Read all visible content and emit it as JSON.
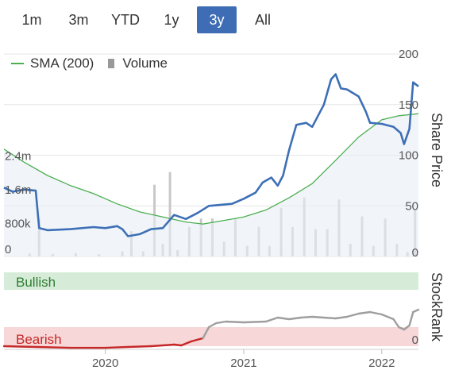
{
  "range_selector": {
    "buttons": [
      "1m",
      "3m",
      "YTD",
      "1y",
      "3y",
      "All"
    ],
    "active": "3y"
  },
  "legend": {
    "sma_label": "SMA (200)",
    "volume_label": "Volume"
  },
  "colors": {
    "price": "#3d6fb6",
    "sma": "#4caf50",
    "volume": "#c8c8c8",
    "bullish_band": "#d6ecd8",
    "bearish_band": "#f7d7d7",
    "bullish_text": "#2e7d32",
    "bearish_text": "#c62828",
    "rank_bull": "#9e9e9e",
    "rank_bear": "#c62828",
    "active_button": "#3f6db5"
  },
  "chart_data": {
    "type": "line",
    "x_tick_labels": [
      "2020",
      "2021",
      "2022"
    ],
    "price_axis": {
      "title": "Share Price",
      "ticks": [
        0,
        50,
        100,
        150,
        200
      ],
      "ylim": [
        0,
        200
      ]
    },
    "volume_axis": {
      "tick_labels": [
        "0",
        "800k",
        "1.6m",
        "2.4m"
      ],
      "ticks": [
        0,
        800000,
        1600000,
        2400000
      ],
      "ylim": [
        0,
        4800000
      ]
    },
    "stockrank_axis": {
      "title": "StockRank",
      "ticks": [
        0
      ],
      "ylim": [
        0,
        100
      ],
      "bullish_label": "Bullish",
      "bearish_label": "Bearish"
    },
    "x_range": [
      "2019-04-08",
      "2022-04-08"
    ],
    "series": [
      {
        "name": "SMA (200)",
        "points": [
          [
            "2019-04-08",
            106
          ],
          [
            "2019-06-01",
            93
          ],
          [
            "2019-08-01",
            80
          ],
          [
            "2019-10-01",
            70
          ],
          [
            "2019-12-01",
            62
          ],
          [
            "2020-02-01",
            52
          ],
          [
            "2020-04-01",
            44
          ],
          [
            "2020-06-01",
            39
          ],
          [
            "2020-08-01",
            34
          ],
          [
            "2020-09-15",
            32
          ],
          [
            "2020-11-01",
            35
          ],
          [
            "2021-01-01",
            39
          ],
          [
            "2021-03-01",
            46
          ],
          [
            "2021-05-01",
            58
          ],
          [
            "2021-07-01",
            72
          ],
          [
            "2021-09-01",
            95
          ],
          [
            "2021-11-01",
            118
          ],
          [
            "2022-01-01",
            135
          ],
          [
            "2022-02-15",
            139
          ],
          [
            "2022-04-08",
            141
          ]
        ]
      },
      {
        "name": "Share Price",
        "points": [
          [
            "2019-04-08",
            68
          ],
          [
            "2019-05-01",
            64
          ],
          [
            "2019-06-01",
            66
          ],
          [
            "2019-07-01",
            65
          ],
          [
            "2019-07-10",
            28
          ],
          [
            "2019-08-01",
            26
          ],
          [
            "2019-10-01",
            27
          ],
          [
            "2019-12-01",
            29
          ],
          [
            "2020-01-01",
            28
          ],
          [
            "2020-02-01",
            30
          ],
          [
            "2020-02-15",
            27
          ],
          [
            "2020-03-01",
            20
          ],
          [
            "2020-04-01",
            22
          ],
          [
            "2020-05-01",
            27
          ],
          [
            "2020-06-01",
            28
          ],
          [
            "2020-07-01",
            41
          ],
          [
            "2020-08-01",
            37
          ],
          [
            "2020-09-01",
            43
          ],
          [
            "2020-10-01",
            50
          ],
          [
            "2020-12-01",
            52
          ],
          [
            "2021-01-01",
            57
          ],
          [
            "2021-02-01",
            63
          ],
          [
            "2021-02-20",
            73
          ],
          [
            "2021-03-15",
            78
          ],
          [
            "2021-04-01",
            70
          ],
          [
            "2021-04-15",
            80
          ],
          [
            "2021-05-01",
            105
          ],
          [
            "2021-05-20",
            130
          ],
          [
            "2021-06-15",
            132
          ],
          [
            "2021-07-01",
            128
          ],
          [
            "2021-08-01",
            150
          ],
          [
            "2021-08-20",
            175
          ],
          [
            "2021-09-01",
            180
          ],
          [
            "2021-09-15",
            166
          ],
          [
            "2021-10-01",
            165
          ],
          [
            "2021-11-01",
            158
          ],
          [
            "2021-11-20",
            143
          ],
          [
            "2021-12-01",
            132
          ],
          [
            "2022-01-01",
            131
          ],
          [
            "2022-02-01",
            128
          ],
          [
            "2022-02-20",
            122
          ],
          [
            "2022-03-01",
            111
          ],
          [
            "2022-03-15",
            126
          ],
          [
            "2022-03-25",
            172
          ],
          [
            "2022-04-08",
            168
          ]
        ]
      },
      {
        "name": "Volume",
        "bars": [
          [
            "2019-06-15",
            70000
          ],
          [
            "2019-07-10",
            900000
          ],
          [
            "2019-08-15",
            60000
          ],
          [
            "2019-10-15",
            80000
          ],
          [
            "2019-12-15",
            50000
          ],
          [
            "2020-02-15",
            120000
          ],
          [
            "2020-03-10",
            600000
          ],
          [
            "2020-04-10",
            120000
          ],
          [
            "2020-05-10",
            1700000
          ],
          [
            "2020-06-01",
            300000
          ],
          [
            "2020-06-20",
            2000000
          ],
          [
            "2020-07-10",
            150000
          ],
          [
            "2020-08-10",
            700000
          ],
          [
            "2020-09-10",
            900000
          ],
          [
            "2020-10-10",
            900000
          ],
          [
            "2020-11-10",
            350000
          ],
          [
            "2020-12-10",
            900000
          ],
          [
            "2021-01-10",
            250000
          ],
          [
            "2021-02-10",
            700000
          ],
          [
            "2021-03-10",
            250000
          ],
          [
            "2021-04-10",
            1150000
          ],
          [
            "2021-05-10",
            700000
          ],
          [
            "2021-06-10",
            1400000
          ],
          [
            "2021-07-10",
            650000
          ],
          [
            "2021-08-10",
            650000
          ],
          [
            "2021-09-10",
            1350000
          ],
          [
            "2021-10-10",
            300000
          ],
          [
            "2021-11-10",
            950000
          ],
          [
            "2021-12-10",
            250000
          ],
          [
            "2022-01-10",
            900000
          ],
          [
            "2022-02-10",
            300000
          ],
          [
            "2022-03-10",
            100000
          ],
          [
            "2022-03-30",
            1100000
          ]
        ]
      },
      {
        "name": "StockRank",
        "points": [
          [
            "2019-04-08",
            4
          ],
          [
            "2019-07-01",
            3
          ],
          [
            "2019-10-01",
            2
          ],
          [
            "2020-01-01",
            2
          ],
          [
            "2020-03-01",
            3
          ],
          [
            "2020-05-01",
            4
          ],
          [
            "2020-07-01",
            6
          ],
          [
            "2020-07-20",
            5
          ],
          [
            "2020-08-15",
            10
          ],
          [
            "2020-09-15",
            14
          ],
          [
            "2020-10-01",
            28
          ],
          [
            "2020-10-20",
            33
          ],
          [
            "2020-11-15",
            35
          ],
          [
            "2021-01-01",
            34
          ],
          [
            "2021-03-01",
            35
          ],
          [
            "2021-04-01",
            40
          ],
          [
            "2021-05-01",
            38
          ],
          [
            "2021-06-01",
            40
          ],
          [
            "2021-07-01",
            41
          ],
          [
            "2021-09-01",
            39
          ],
          [
            "2021-10-01",
            41
          ],
          [
            "2021-11-01",
            45
          ],
          [
            "2021-12-01",
            47
          ],
          [
            "2022-01-01",
            44
          ],
          [
            "2022-02-01",
            38
          ],
          [
            "2022-02-15",
            28
          ],
          [
            "2022-03-01",
            25
          ],
          [
            "2022-03-15",
            30
          ],
          [
            "2022-03-25",
            47
          ],
          [
            "2022-04-08",
            50
          ]
        ],
        "bull_threshold": 20
      }
    ]
  }
}
